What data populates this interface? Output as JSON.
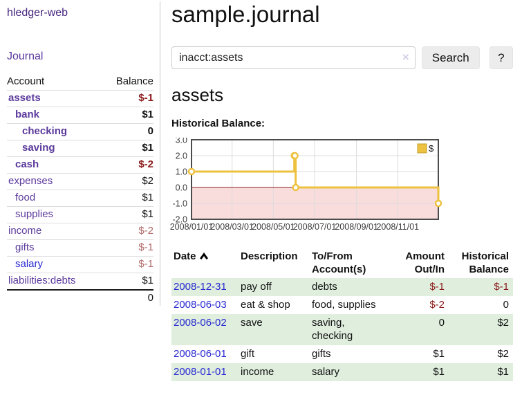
{
  "colors": {
    "purple": "#5b3a9c",
    "title_purple": "#46267f",
    "blue": "#2a2ad2",
    "negative": "#8b1a1a",
    "rose": "#b36a6a",
    "row_green": "#dfeedd",
    "chart_gold": "#edc240",
    "chart_pink": "#f9dcdc",
    "chart_zero": "#8b1b1b",
    "button_bg": "#ececec",
    "border_light": "#dddddd",
    "border_mid": "#c9c9c9"
  },
  "sidebar": {
    "app_title": "hledger-web",
    "nav": {
      "journal_label": "Journal"
    },
    "accounts_table": {
      "headers": {
        "account": "Account",
        "balance": "Balance"
      },
      "rows": [
        {
          "name": "assets",
          "depth": 1,
          "emph": true,
          "link_tone": "purple",
          "balance": "$-1",
          "balance_tone": "neg"
        },
        {
          "name": "bank",
          "depth": 2,
          "emph": true,
          "link_tone": "purple",
          "balance": "$1",
          "balance_tone": "plain"
        },
        {
          "name": "checking",
          "depth": 3,
          "emph": true,
          "link_tone": "purple",
          "balance": "0",
          "balance_tone": "plain"
        },
        {
          "name": "saving",
          "depth": 3,
          "emph": true,
          "link_tone": "purple",
          "balance": "$1",
          "balance_tone": "plain"
        },
        {
          "name": "cash",
          "depth": 2,
          "emph": true,
          "link_tone": "purple",
          "balance": "$-2",
          "balance_tone": "neg"
        },
        {
          "name": "expenses",
          "depth": 1,
          "emph": false,
          "link_tone": "purple",
          "balance": "$2",
          "balance_tone": "plain"
        },
        {
          "name": "food",
          "depth": 2,
          "emph": false,
          "link_tone": "purple",
          "balance": "$1",
          "balance_tone": "plain"
        },
        {
          "name": "supplies",
          "depth": 2,
          "emph": false,
          "link_tone": "purple",
          "balance": "$1",
          "balance_tone": "plain"
        },
        {
          "name": "income",
          "depth": 1,
          "emph": false,
          "link_tone": "purple",
          "balance": "$-2",
          "balance_tone": "rose"
        },
        {
          "name": "gifts",
          "depth": 2,
          "emph": false,
          "link_tone": "purple",
          "balance": "$-1",
          "balance_tone": "rose"
        },
        {
          "name": "salary",
          "depth": 2,
          "emph": false,
          "link_tone": "blue",
          "balance": "$-1",
          "balance_tone": "rose"
        },
        {
          "name": "liabilities:debts",
          "depth": 1,
          "emph": false,
          "link_tone": "purple",
          "balance": "$1",
          "balance_tone": "plain"
        }
      ],
      "total": "0"
    }
  },
  "main": {
    "title": "sample.journal",
    "search": {
      "value": "inacct:assets",
      "clear_icon": "×",
      "search_label": "Search",
      "help_label": "?"
    },
    "account_heading": "assets",
    "chart_label": "Historical Balance:",
    "register_table": {
      "headers": {
        "date": "Date",
        "description": "Description",
        "accounts": "To/From Account(s)",
        "amount": "Amount Out/In",
        "balance": "Historical Balance"
      },
      "sort": {
        "column": "date",
        "direction": "asc"
      },
      "rows": [
        {
          "date": "2008-12-31",
          "description": "pay off",
          "accounts": "debts",
          "amount": "$-1",
          "amount_tone": "neg",
          "balance": "$-1",
          "balance_tone": "neg"
        },
        {
          "date": "2008-06-03",
          "description": "eat & shop",
          "accounts": "food, supplies",
          "amount": "$-2",
          "amount_tone": "neg",
          "balance": "0",
          "balance_tone": "plain"
        },
        {
          "date": "2008-06-02",
          "description": "save",
          "accounts": "saving, checking",
          "amount": "0",
          "amount_tone": "plain",
          "balance": "$2",
          "balance_tone": "plain"
        },
        {
          "date": "2008-06-01",
          "description": "gift",
          "accounts": "gifts",
          "amount": "$1",
          "amount_tone": "plain",
          "balance": "$2",
          "balance_tone": "plain"
        },
        {
          "date": "2008-01-01",
          "description": "income",
          "accounts": "salary",
          "amount": "$1",
          "amount_tone": "plain",
          "balance": "$1",
          "balance_tone": "plain"
        }
      ]
    }
  },
  "chart_data": {
    "type": "line",
    "step": true,
    "title": "",
    "xlabel": "",
    "ylabel": "",
    "x_range": [
      "2008-01-01",
      "2008-12-31"
    ],
    "x_tick_labels": [
      "2008/01/01",
      "2008/03/01",
      "2008/05/01",
      "2008/07/01",
      "2008/09/01",
      "2008/11/01"
    ],
    "y_ticks": [
      3.0,
      2.0,
      1.0,
      0.0,
      -1.0,
      -2.0
    ],
    "ylim": [
      -2,
      3
    ],
    "grid": true,
    "legend_position": "top-right",
    "series": [
      {
        "name": "$",
        "color": "#edc240",
        "points": [
          {
            "x": "2008-01-01",
            "y": 1
          },
          {
            "x": "2008-06-01",
            "y": 2
          },
          {
            "x": "2008-06-02",
            "y": 2
          },
          {
            "x": "2008-06-03",
            "y": 0
          },
          {
            "x": "2008-12-31",
            "y": -1
          }
        ]
      }
    ]
  }
}
